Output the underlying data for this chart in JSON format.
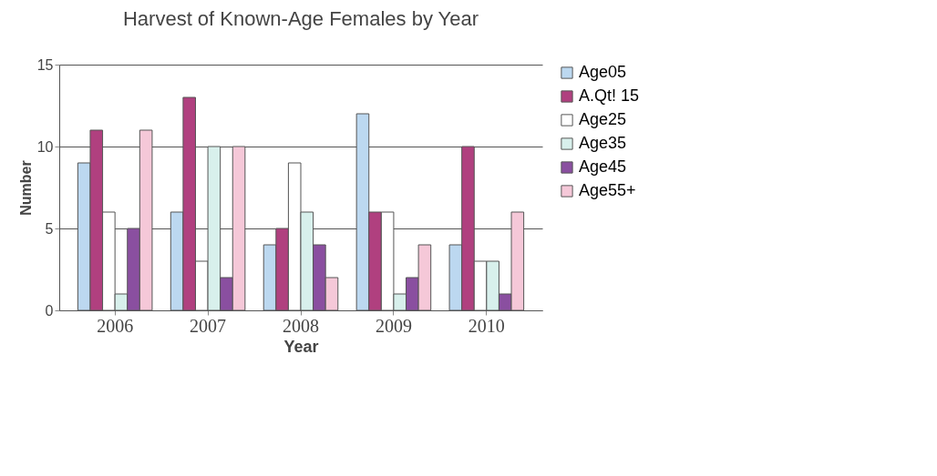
{
  "chart_data": {
    "type": "bar",
    "title": "Harvest of Known-Age Females by Year",
    "xlabel": "Year",
    "ylabel": "Number",
    "categories": [
      "2006",
      "2007",
      "2008",
      "2009",
      "2010"
    ],
    "series": [
      {
        "name": "Age05",
        "color": "#bcd8f0",
        "values": [
          9,
          6,
          4,
          12,
          4
        ]
      },
      {
        "name": "A.Qt! 15",
        "color": "#b0407f",
        "values": [
          11,
          13,
          5,
          6,
          10
        ]
      },
      {
        "name": "Age25",
        "color": "#ffffff",
        "values": [
          6,
          3,
          9,
          6,
          3
        ]
      },
      {
        "name": "Age35",
        "color": "#d8f0ec",
        "values": [
          1,
          10,
          6,
          1,
          3
        ]
      },
      {
        "name": "Age45",
        "color": "#8a4fa0",
        "values": [
          5,
          2,
          4,
          2,
          1
        ]
      },
      {
        "name": "Age55+",
        "color": "#f5c8d8",
        "values": [
          11,
          10,
          2,
          4,
          6
        ]
      }
    ],
    "ylim": [
      0,
      15
    ],
    "yticks": [
      0,
      5,
      10,
      15
    ],
    "grid": "y",
    "legend": "right"
  }
}
